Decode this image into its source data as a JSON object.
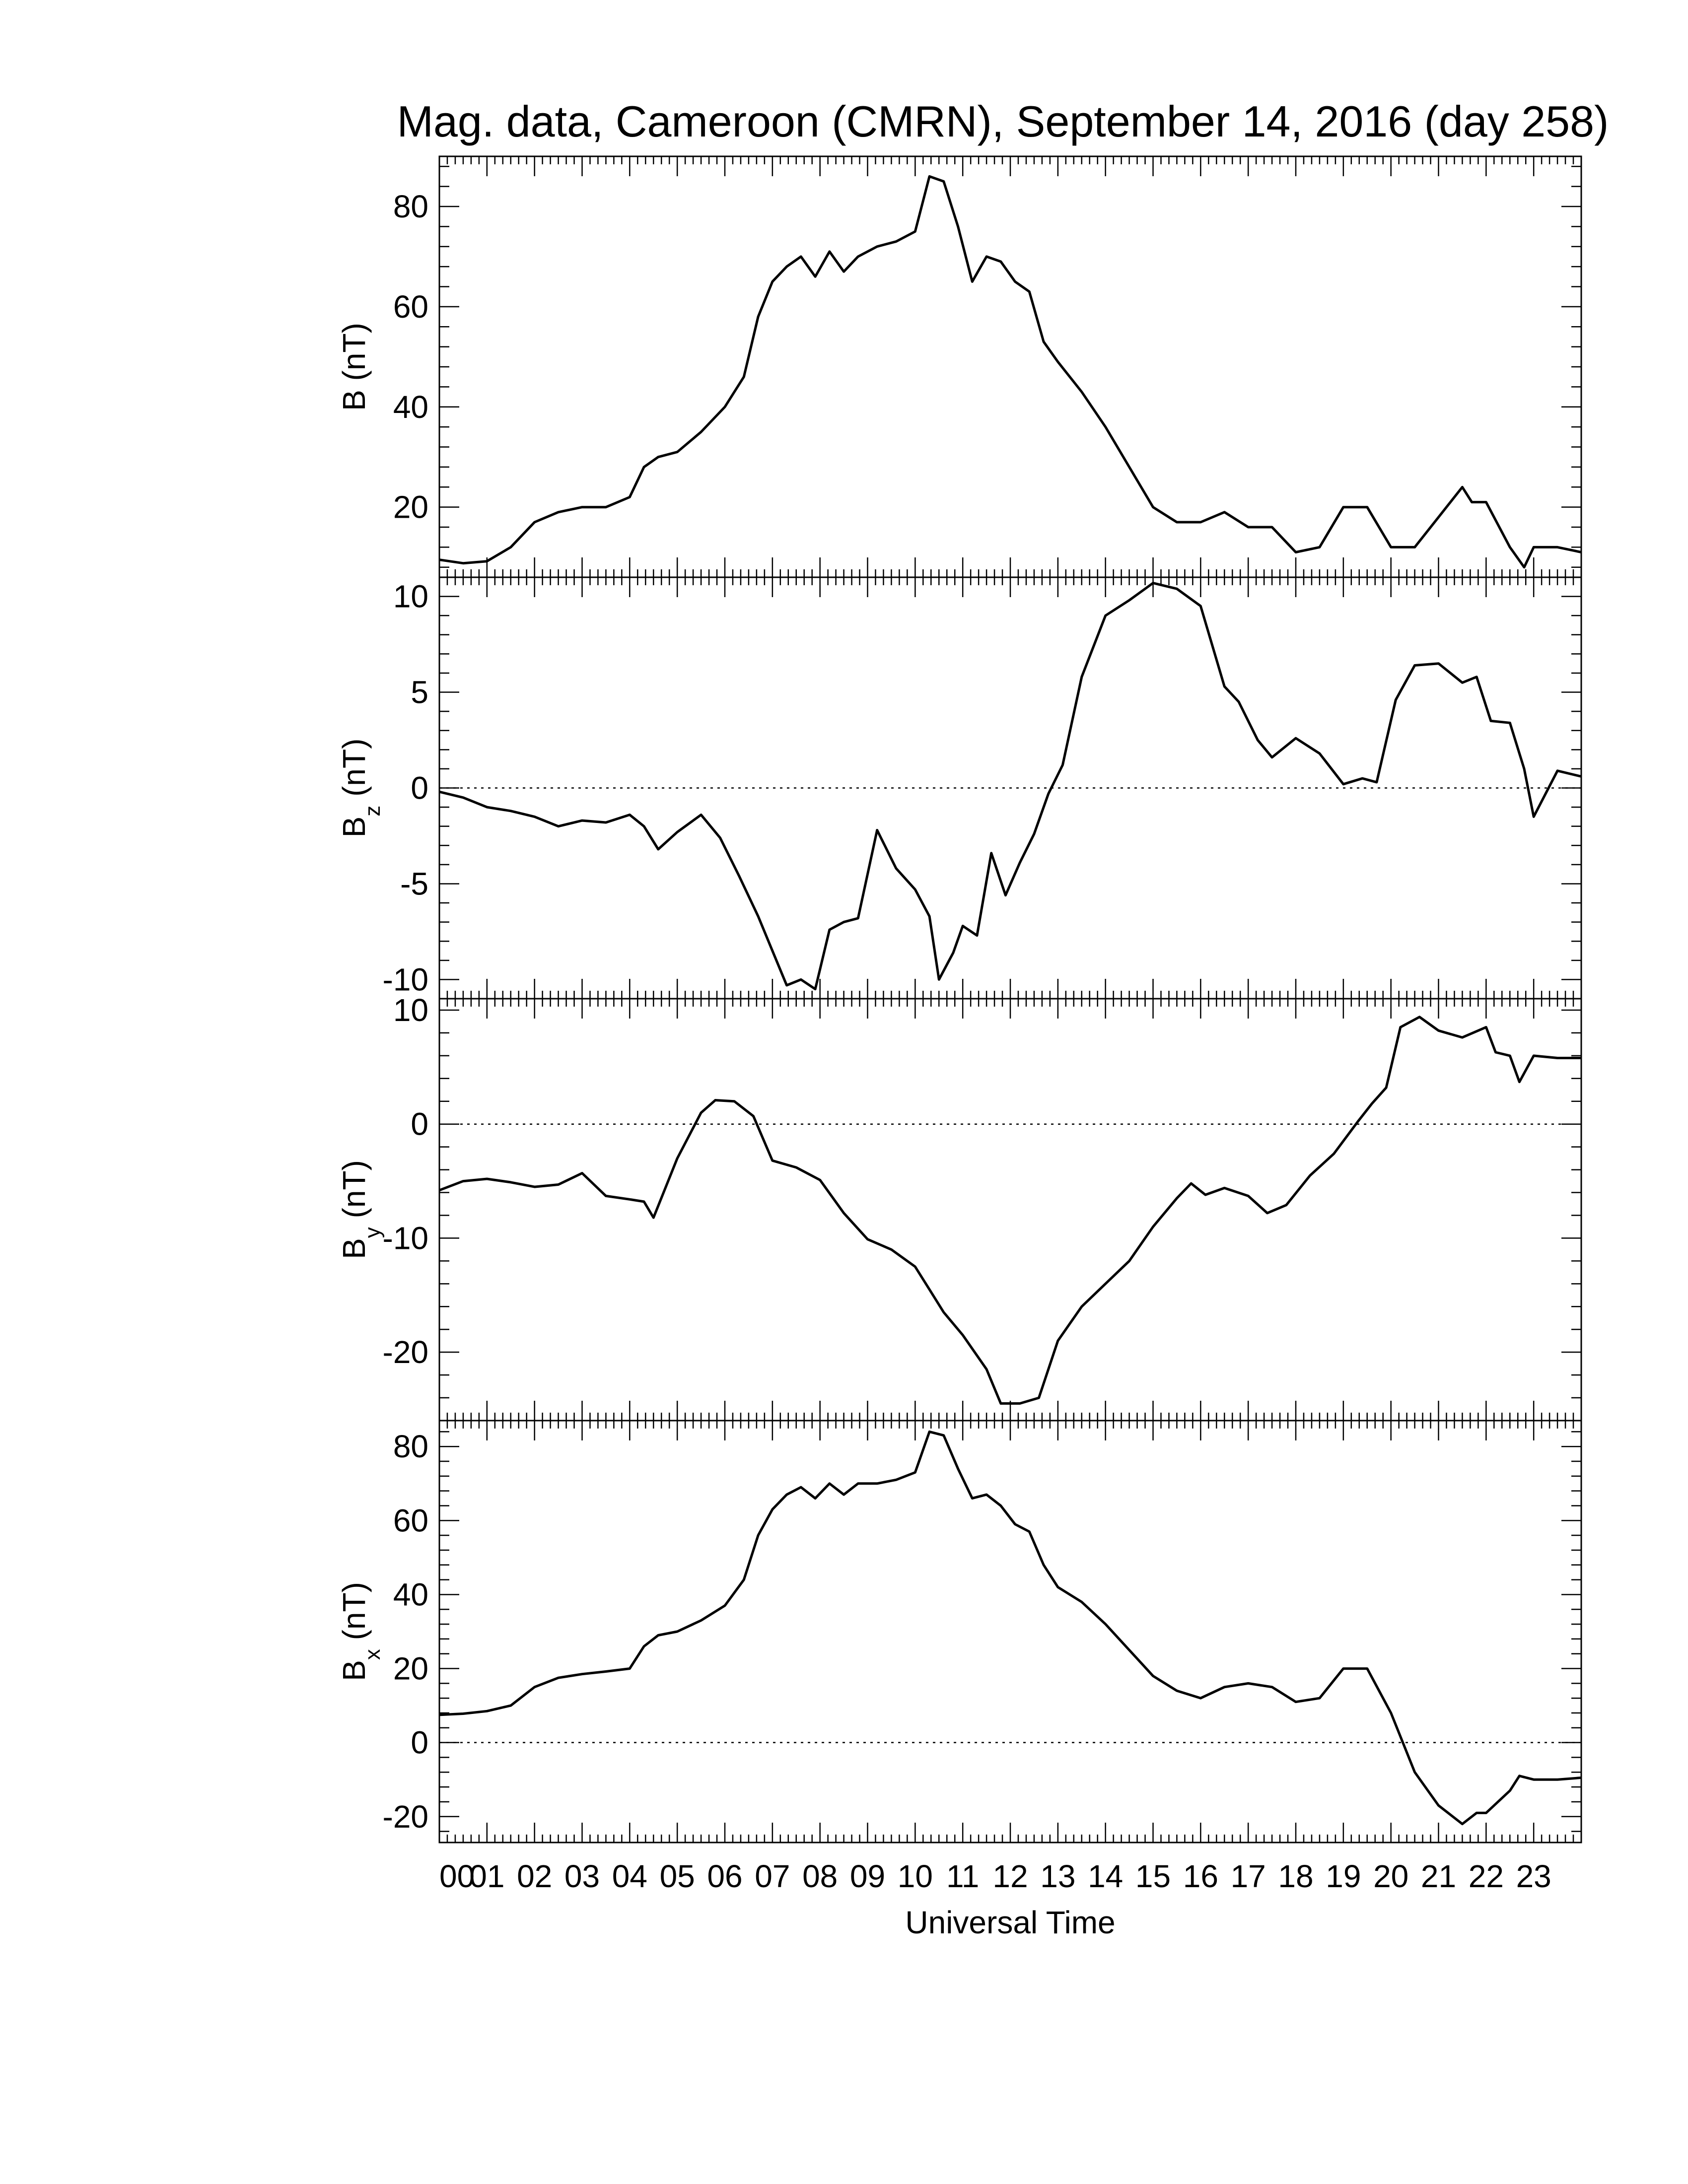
{
  "title": "Mag. data, Cameroon (CMRN), September 14, 2016 (day 258)",
  "xlabel": "Universal Time",
  "x_tick_labels": [
    "00",
    "01",
    "02",
    "03",
    "04",
    "05",
    "06",
    "07",
    "08",
    "09",
    "10",
    "11",
    "12",
    "13",
    "14",
    "15",
    "16",
    "17",
    "18",
    "19",
    "20",
    "21",
    "22",
    "23"
  ],
  "chart_data": [
    {
      "type": "line",
      "ylabel": "B (nT)",
      "ylabel_main": "B",
      "ylabel_sub": "",
      "ylabel_unit": " (nT)",
      "xlim": [
        0,
        24
      ],
      "ylim": [
        6,
        90
      ],
      "yticks": [
        20,
        40,
        60,
        80
      ],
      "zero_line": false,
      "x": [
        0,
        0.5,
        1,
        1.5,
        2,
        2.5,
        3,
        3.5,
        4,
        4.3,
        4.6,
        5,
        5.5,
        6,
        6.4,
        6.7,
        7,
        7.3,
        7.6,
        7.9,
        8.2,
        8.5,
        8.8,
        9.2,
        9.6,
        10,
        10.3,
        10.6,
        10.9,
        11.2,
        11.5,
        11.8,
        12.1,
        12.4,
        12.7,
        13,
        13.5,
        14,
        14.5,
        15,
        15.5,
        16,
        16.5,
        17,
        17.5,
        18,
        18.5,
        19,
        19.5,
        20,
        20.5,
        21,
        21.5,
        21.7,
        22,
        22.5,
        22.8,
        23,
        23.5,
        24
      ],
      "values": [
        9.5,
        8.8,
        9.2,
        12,
        17,
        19,
        20,
        20,
        22,
        28,
        30,
        31,
        35,
        40,
        46,
        58,
        65,
        68,
        70,
        66,
        71,
        67,
        70,
        72,
        73,
        75,
        86,
        85,
        76,
        65,
        70,
        69,
        65,
        63,
        53,
        49,
        43,
        36,
        28,
        20,
        17,
        17,
        19,
        16,
        16,
        11,
        12,
        20,
        20,
        12,
        12,
        18,
        24,
        21,
        21,
        12,
        8,
        12,
        12,
        11
      ]
    },
    {
      "type": "line",
      "ylabel": "Bz (nT)",
      "ylabel_main": "B",
      "ylabel_sub": "z",
      "ylabel_unit": " (nT)",
      "xlim": [
        0,
        24
      ],
      "ylim": [
        -11,
        11
      ],
      "yticks": [
        -10,
        -5,
        0,
        5,
        10
      ],
      "zero_line": true,
      "x": [
        0,
        0.5,
        1,
        1.5,
        2,
        2.5,
        3,
        3.5,
        4,
        4.3,
        4.6,
        5,
        5.5,
        5.9,
        6.3,
        6.7,
        7,
        7.3,
        7.6,
        7.9,
        8.2,
        8.5,
        8.8,
        9.2,
        9.6,
        10,
        10.3,
        10.5,
        10.8,
        11,
        11.3,
        11.6,
        11.9,
        12.2,
        12.5,
        12.8,
        13.1,
        13.5,
        14,
        14.5,
        15,
        15.5,
        16,
        16.5,
        16.8,
        17.2,
        17.5,
        18,
        18.5,
        19,
        19.4,
        19.7,
        20.1,
        20.5,
        21,
        21.5,
        21.8,
        22.1,
        22.5,
        22.8,
        23,
        23.5,
        24
      ],
      "values": [
        -0.2,
        -0.5,
        -1,
        -1.2,
        -1.5,
        -2,
        -1.7,
        -1.8,
        -1.4,
        -2,
        -3.2,
        -2.3,
        -1.4,
        -2.6,
        -4.6,
        -6.7,
        -8.5,
        -10.3,
        -10,
        -10.5,
        -7.4,
        -7,
        -6.8,
        -2.2,
        -4.2,
        -5.3,
        -6.7,
        -10,
        -8.6,
        -7.2,
        -7.7,
        -3.4,
        -5.6,
        -3.9,
        -2.4,
        -0.3,
        1.2,
        5.8,
        9,
        9.8,
        10.7,
        10.4,
        9.5,
        5.3,
        4.5,
        2.5,
        1.6,
        2.6,
        1.8,
        0.2,
        0.5,
        0.3,
        4.6,
        6.4,
        6.5,
        5.5,
        5.8,
        3.5,
        3.4,
        1,
        -1.5,
        0.9,
        0.6
      ]
    },
    {
      "type": "line",
      "ylabel": "By (nT)",
      "ylabel_main": "B",
      "ylabel_sub": "y",
      "ylabel_unit": " (nT)",
      "xlim": [
        0,
        24
      ],
      "ylim": [
        -26,
        11
      ],
      "yticks": [
        -20,
        -10,
        0,
        10
      ],
      "zero_line": true,
      "x": [
        0,
        0.5,
        1,
        1.5,
        2,
        2.5,
        3,
        3.5,
        4,
        4.3,
        4.5,
        5,
        5.5,
        5.8,
        6.2,
        6.6,
        7,
        7.5,
        8,
        8.5,
        9,
        9.5,
        10,
        10.3,
        10.6,
        11,
        11.5,
        11.8,
        12.2,
        12.6,
        13,
        13.5,
        14,
        14.5,
        15,
        15.5,
        15.8,
        16.1,
        16.5,
        17,
        17.4,
        17.8,
        18.3,
        18.8,
        19.3,
        19.6,
        19.9,
        20.2,
        20.6,
        21,
        21.5,
        22,
        22.2,
        22.5,
        22.7,
        23,
        23.5,
        24
      ],
      "values": [
        -5.8,
        -5,
        -4.8,
        -5.1,
        -5.5,
        -5.3,
        -4.3,
        -6.3,
        -6.6,
        -6.8,
        -8.2,
        -3,
        1,
        2.1,
        2,
        0.7,
        -3.2,
        -3.8,
        -4.9,
        -7.8,
        -10.1,
        -11,
        -12.5,
        -14.5,
        -16.5,
        -18.5,
        -21.5,
        -24.5,
        -24.5,
        -24,
        -19,
        -16,
        -14,
        -12,
        -9,
        -6.5,
        -5.2,
        -6.2,
        -5.6,
        -6.3,
        -7.8,
        -7.1,
        -4.5,
        -2.6,
        0.2,
        1.8,
        3.2,
        8.5,
        9.4,
        8.2,
        7.6,
        8.5,
        6.3,
        6,
        3.7,
        6,
        5.8,
        5.8
      ]
    },
    {
      "type": "line",
      "ylabel": "Bx (nT)",
      "ylabel_main": "B",
      "ylabel_sub": "x",
      "ylabel_unit": " (nT)",
      "xlim": [
        0,
        24
      ],
      "ylim": [
        -27,
        87
      ],
      "yticks": [
        -20,
        0,
        20,
        40,
        60,
        80
      ],
      "zero_line": true,
      "x": [
        0,
        0.5,
        1,
        1.5,
        2,
        2.5,
        3,
        3.5,
        4,
        4.3,
        4.6,
        5,
        5.5,
        6,
        6.4,
        6.7,
        7,
        7.3,
        7.6,
        7.9,
        8.2,
        8.5,
        8.8,
        9.2,
        9.6,
        10,
        10.3,
        10.6,
        10.9,
        11.2,
        11.5,
        11.8,
        12.1,
        12.4,
        12.7,
        13,
        13.5,
        14,
        14.5,
        15,
        15.5,
        16,
        16.5,
        17,
        17.5,
        18,
        18.5,
        19,
        19.5,
        20,
        20.5,
        21,
        21.5,
        21.8,
        22,
        22.5,
        22.7,
        23,
        23.5,
        24
      ],
      "values": [
        7.5,
        7.8,
        8.5,
        10,
        15,
        17.5,
        18.5,
        19.2,
        20,
        26,
        29,
        30,
        33,
        37,
        44,
        56,
        63,
        67,
        69,
        66,
        70,
        67,
        70,
        70,
        71,
        73,
        84,
        83,
        74,
        66,
        67,
        64,
        59,
        57,
        48,
        42,
        38,
        32,
        25,
        18,
        14,
        12,
        15,
        16,
        15,
        11,
        12,
        20,
        20,
        8,
        -8,
        -17,
        -22,
        -19,
        -19,
        -13,
        -9,
        -10,
        -10,
        -9.5
      ]
    }
  ]
}
